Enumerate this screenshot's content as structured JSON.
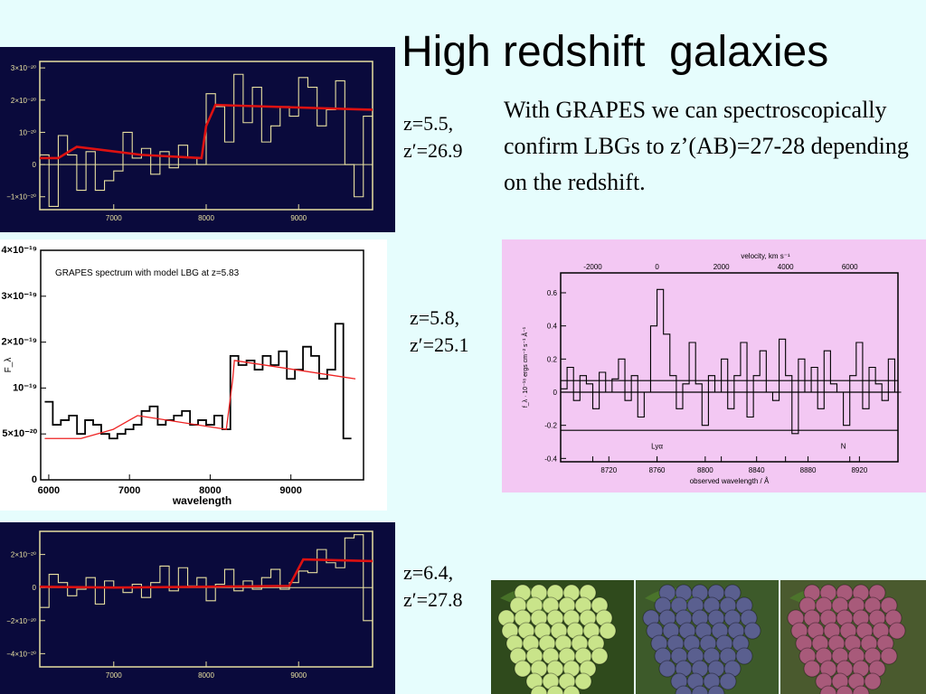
{
  "slide": {
    "title": "High redshift  galaxies",
    "body": "With GRAPES we can spectroscopically confirm LBGs to z’(AB)=27-28 depending on the redshift.",
    "z_labels": [
      {
        "z": "z=5.5,",
        "zmag": "z′=26.9"
      },
      {
        "z": "z=5.8,",
        "zmag": "z′=25.1"
      },
      {
        "z": "z=6.4,",
        "zmag": "z′=27.8"
      }
    ],
    "grapes": [
      {
        "name": "green-grapes",
        "color": "#c9e48a"
      },
      {
        "name": "blue-grapes",
        "color": "#5a5f8f"
      },
      {
        "name": "red-grapes",
        "color": "#a85a7a"
      }
    ]
  },
  "chart_data": [
    {
      "type": "line",
      "panel": "z55",
      "background": "#0a0a3c",
      "xlim": [
        6200,
        9800
      ],
      "ylim": [
        -1.4,
        3.2
      ],
      "xticks": [
        {
          "v": 7000,
          "label": "7000"
        },
        {
          "v": 8000,
          "label": "8000"
        },
        {
          "v": 9000,
          "label": "9000"
        }
      ],
      "yticks": [
        {
          "v": 3,
          "label": "3×10⁻²⁰"
        },
        {
          "v": 2,
          "label": "2×10⁻²⁰"
        },
        {
          "v": 1,
          "label": "10⁻²⁰"
        },
        {
          "v": 0,
          "label": "0"
        },
        {
          "v": -1,
          "label": "−1×10⁻²⁰"
        }
      ],
      "zero_line": true,
      "series": [
        {
          "role": "spectrum",
          "color": "#e8e0a0",
          "x": [
            6200,
            6300,
            6400,
            6500,
            6600,
            6700,
            6800,
            6900,
            7000,
            7100,
            7200,
            7300,
            7400,
            7500,
            7600,
            7700,
            7800,
            7900,
            8000,
            8100,
            8200,
            8300,
            8400,
            8500,
            8600,
            8700,
            8800,
            8900,
            9000,
            9100,
            9200,
            9300,
            9400,
            9500,
            9600,
            9700
          ],
          "y": [
            0.3,
            -1.3,
            0.9,
            0.3,
            -0.8,
            0.4,
            -0.8,
            -0.5,
            -0.2,
            1.0,
            0.2,
            0.5,
            -0.3,
            0.4,
            -0.1,
            0.6,
            0.2,
            0.0,
            2.2,
            1.8,
            0.7,
            2.8,
            1.3,
            2.4,
            0.7,
            1.2,
            1.8,
            1.5,
            2.7,
            2.4,
            1.2,
            1.7,
            2.6,
            0.0,
            -1.0,
            1.5
          ]
        },
        {
          "role": "model",
          "color": "#dd1111",
          "x": [
            6200,
            6400,
            6600,
            7300,
            7950,
            8000,
            8100,
            9800
          ],
          "y": [
            0.2,
            0.2,
            0.55,
            0.3,
            0.2,
            1.2,
            1.85,
            1.7
          ]
        }
      ]
    },
    {
      "type": "line",
      "panel": "z58",
      "background": "#ffffff",
      "title": "GRAPES spectrum with model LBG at z=5.83",
      "xlabel": "wavelength",
      "ylabel": "F_λ",
      "xlim": [
        5900,
        9900
      ],
      "ylim": [
        -1.0,
        4.0
      ],
      "xticks": [
        {
          "v": 6000,
          "label": "6000"
        },
        {
          "v": 7000,
          "label": "7000"
        },
        {
          "v": 8000,
          "label": "8000"
        },
        {
          "v": 9000,
          "label": "9000"
        }
      ],
      "yticks": [
        {
          "v": 4,
          "label": "4×10⁻¹⁹"
        },
        {
          "v": 3,
          "label": "3×10⁻¹⁹"
        },
        {
          "v": 2,
          "label": "2×10⁻¹⁹"
        },
        {
          "v": 1,
          "label": "10⁻¹⁹"
        },
        {
          "v": 0,
          "label": "5×10⁻²⁰"
        },
        {
          "v": -1,
          "label": "0"
        }
      ],
      "zero_line": false,
      "series": [
        {
          "role": "spectrum",
          "color": "#000000",
          "x": [
            5950,
            6050,
            6150,
            6250,
            6350,
            6450,
            6550,
            6650,
            6750,
            6850,
            6950,
            7050,
            7150,
            7250,
            7350,
            7450,
            7550,
            7650,
            7750,
            7850,
            7950,
            8050,
            8150,
            8250,
            8350,
            8450,
            8550,
            8650,
            8750,
            8850,
            8950,
            9050,
            9150,
            9250,
            9350,
            9450,
            9550,
            9650
          ],
          "y": [
            0.7,
            0.2,
            0.3,
            0.4,
            0.0,
            0.3,
            0.2,
            0.0,
            -0.1,
            0.0,
            0.1,
            0.2,
            0.5,
            0.6,
            0.2,
            0.3,
            0.4,
            0.5,
            0.2,
            0.3,
            0.2,
            0.4,
            0.1,
            1.7,
            1.5,
            1.6,
            1.4,
            1.7,
            1.5,
            1.8,
            1.2,
            1.4,
            1.9,
            1.7,
            1.2,
            1.4,
            2.4,
            -0.1
          ]
        },
        {
          "role": "model",
          "color": "#ee2222",
          "x": [
            5950,
            6400,
            6800,
            7000,
            7100,
            8200,
            8280,
            8300,
            9800
          ],
          "y": [
            -0.1,
            -0.1,
            0.1,
            0.3,
            0.4,
            0.1,
            1.2,
            1.6,
            1.2
          ]
        }
      ]
    },
    {
      "type": "line",
      "panel": "z58-vel",
      "background": "#f3c8f3",
      "title": "velocity, km s⁻¹",
      "xlabel": "observed wavelength / Å",
      "ylabel": "f_λ · 10⁻¹⁸ ergs cm⁻² s⁻¹ Å⁻¹",
      "xlim": [
        -3000,
        7500
      ],
      "ylim": [
        -0.42,
        0.72
      ],
      "xticks": [
        {
          "v": -2000,
          "label": "-2000"
        },
        {
          "v": 0,
          "label": "0"
        },
        {
          "v": 2000,
          "label": "2000"
        },
        {
          "v": 4000,
          "label": "4000"
        },
        {
          "v": 6000,
          "label": "6000"
        }
      ],
      "yticks": [
        {
          "v": 0.6,
          "label": "0.6"
        },
        {
          "v": 0.4,
          "label": "0.4"
        },
        {
          "v": 0.2,
          "label": "0.2"
        },
        {
          "v": 0.0,
          "label": "0"
        },
        {
          "v": -0.2,
          "label": "-0.2"
        },
        {
          "v": -0.4,
          "label": "-0.4"
        }
      ],
      "bottom_ticks": [
        {
          "v": -1500,
          "label": "8720"
        },
        {
          "v": 0,
          "label": "8760"
        },
        {
          "v": 1500,
          "label": "8800"
        },
        {
          "v": 3100,
          "label": "8840"
        },
        {
          "v": 4700,
          "label": "8880"
        },
        {
          "v": 6300,
          "label": "8920"
        }
      ],
      "annotations": [
        {
          "x": 0,
          "y": -0.34,
          "text": "Lyα"
        },
        {
          "x": 5800,
          "y": -0.34,
          "text": "N"
        }
      ],
      "hlines": [
        0.07,
        0.0,
        -0.23
      ],
      "series": [
        {
          "role": "spectrum",
          "color": "#000000",
          "x": [
            -3000,
            -2800,
            -2600,
            -2400,
            -2200,
            -2000,
            -1800,
            -1600,
            -1400,
            -1200,
            -1000,
            -800,
            -600,
            -400,
            -200,
            0,
            200,
            400,
            600,
            800,
            1000,
            1200,
            1400,
            1600,
            1800,
            2000,
            2200,
            2400,
            2600,
            2800,
            3000,
            3200,
            3400,
            3600,
            3800,
            4000,
            4200,
            4400,
            4600,
            4800,
            5000,
            5200,
            5400,
            5600,
            5800,
            6000,
            6200,
            6400,
            6600,
            6800,
            7000,
            7200,
            7400
          ],
          "y": [
            0.02,
            0.15,
            -0.05,
            0.1,
            0.05,
            -0.1,
            0.12,
            0.0,
            0.08,
            0.2,
            -0.05,
            0.1,
            -0.15,
            0.0,
            0.4,
            0.62,
            0.35,
            0.1,
            -0.1,
            0.05,
            0.3,
            0.05,
            -0.2,
            0.1,
            0.0,
            0.2,
            -0.1,
            0.1,
            0.3,
            -0.15,
            0.1,
            0.25,
            0.0,
            -0.05,
            0.32,
            0.1,
            -0.25,
            0.2,
            0.0,
            0.15,
            -0.1,
            0.25,
            0.05,
            0.0,
            -0.2,
            0.1,
            0.3,
            -0.1,
            0.15,
            0.05,
            -0.05,
            0.2,
            0.0
          ]
        }
      ]
    },
    {
      "type": "line",
      "panel": "z64",
      "background": "#0a0a3c",
      "xlim": [
        6200,
        9800
      ],
      "ylim": [
        -4.8,
        3.4
      ],
      "xticks": [
        {
          "v": 7000,
          "label": "7000"
        },
        {
          "v": 8000,
          "label": "8000"
        },
        {
          "v": 9000,
          "label": "9000"
        }
      ],
      "yticks": [
        {
          "v": 2,
          "label": "2×10⁻²⁰"
        },
        {
          "v": 0,
          "label": "0"
        },
        {
          "v": -2,
          "label": "−2×10⁻²⁰"
        },
        {
          "v": -4,
          "label": "−4×10⁻²⁰"
        }
      ],
      "zero_line": true,
      "series": [
        {
          "role": "spectrum",
          "color": "#e8e0a0",
          "x": [
            6200,
            6300,
            6400,
            6500,
            6600,
            6700,
            6800,
            6900,
            7000,
            7100,
            7200,
            7300,
            7400,
            7500,
            7600,
            7700,
            7800,
            7900,
            8000,
            8100,
            8200,
            8300,
            8400,
            8500,
            8600,
            8700,
            8800,
            8900,
            9000,
            9100,
            9200,
            9300,
            9400,
            9500,
            9600,
            9700
          ],
          "y": [
            -1.2,
            0.8,
            0.3,
            -0.5,
            -0.1,
            0.6,
            -1.0,
            0.4,
            0.0,
            -0.3,
            0.2,
            -0.6,
            0.3,
            1.3,
            -0.2,
            1.2,
            0.1,
            0.6,
            -0.8,
            0.2,
            1.1,
            -0.2,
            0.4,
            -0.1,
            0.6,
            1.1,
            -0.1,
            0.3,
            1.0,
            0.9,
            2.3,
            1.5,
            1.2,
            3.0,
            3.2,
            -2.0
          ]
        },
        {
          "role": "model",
          "color": "#dd1111",
          "x": [
            6200,
            7000,
            8000,
            8900,
            9050,
            9800
          ],
          "y": [
            0.05,
            0.0,
            0.05,
            0.1,
            1.7,
            1.6
          ]
        }
      ]
    }
  ]
}
